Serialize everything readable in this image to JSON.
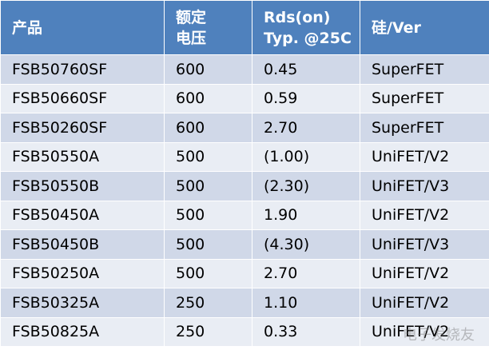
{
  "table": {
    "header": [
      [
        "产品"
      ],
      [
        "额定",
        "电压"
      ],
      [
        "Rds(on)",
        "Typ. @25C"
      ],
      [
        "硅/Ver"
      ]
    ],
    "rows": [
      [
        "FSB50760SF",
        "600",
        "0.45",
        "SuperFET"
      ],
      [
        "FSB50660SF",
        "600",
        "0.59",
        "SuperFET"
      ],
      [
        "FSB50260SF",
        "600",
        "2.70",
        "SuperFET"
      ],
      [
        "FSB50550A",
        "500",
        "(1.00)",
        "UniFET/V2"
      ],
      [
        "FSB50550B",
        "500",
        "(2.30)",
        "UniFET/V3"
      ],
      [
        "FSB50450A",
        "500",
        "1.90",
        "UniFET/V2"
      ],
      [
        "FSB50450B",
        "500",
        "(4.30)",
        "UniFET/V3"
      ],
      [
        "FSB50250A",
        "500",
        "2.70",
        "UniFET/V2"
      ],
      [
        "FSB50325A",
        "250",
        "1.10",
        "UniFET/V2"
      ],
      [
        "FSB50825A",
        "250",
        "0.33",
        "UniFET/V2"
      ]
    ]
  },
  "watermark": "电子发烧友"
}
